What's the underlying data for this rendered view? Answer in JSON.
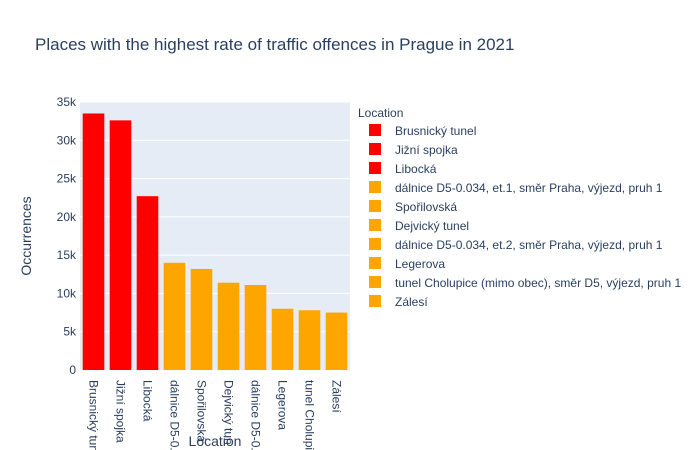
{
  "chart_data": {
    "type": "bar",
    "title": "Places with the highest rate of traffic offences in Prague in 2021",
    "xlabel": "Location",
    "ylabel": "Occurrences",
    "ylim": [
      0,
      35000
    ],
    "yticks": [
      0,
      5000,
      10000,
      15000,
      20000,
      25000,
      30000,
      35000
    ],
    "ytick_labels": [
      "0",
      "5k",
      "10k",
      "15k",
      "20k",
      "25k",
      "30k",
      "35k"
    ],
    "grid": true,
    "legend_title": "Location",
    "legend_position": "right",
    "categories": [
      "Brusnický tunel",
      "Jižní spojka",
      "Libocká",
      "dálnice D5-0.034, et.1, směr Praha, výjezd, pruh 1",
      "Spořilovská",
      "Dejvický tunel",
      "dálnice D5-0.034, et.2, směr Praha, výjezd, pruh 1",
      "Legerova",
      "tunel Cholupice (mimo obec), směr D5, výjezd, pruh 1",
      "Zálesí"
    ],
    "tick_labels": [
      "Brusnický tun",
      "Jižní spojka",
      "Libocká",
      "dálnice D5-0.",
      "Spořilovská",
      "Dejvický tun",
      "dálnice D5-0.",
      "Legerova",
      "tunel Cholupi",
      "Zálesí"
    ],
    "values": [
      33500,
      32600,
      22700,
      14000,
      13200,
      11400,
      11100,
      8000,
      7800,
      7500
    ],
    "colors": [
      "#ff0000",
      "#ff0000",
      "#ff0000",
      "#ffa500",
      "#ffa500",
      "#ffa500",
      "#ffa500",
      "#ffa500",
      "#ffa500",
      "#ffa500"
    ]
  }
}
